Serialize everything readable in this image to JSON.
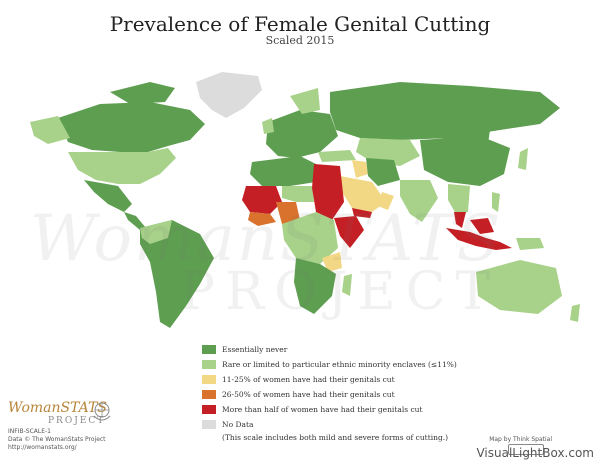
{
  "header": {
    "title": "Prevalence of Female Genital Cutting",
    "subtitle": "Scaled 2015"
  },
  "colors": {
    "essentially_never": "#5e9e50",
    "rare": "#a8d28a",
    "low": "#f2d884",
    "mid": "#d8722c",
    "high": "#c41f25",
    "no_data": "#dcdcdc"
  },
  "legend": {
    "items": [
      {
        "label": "Essentially never",
        "color": "#5e9e50"
      },
      {
        "label": "Rare or limited to particular ethnic minority enclaves (≤11%)",
        "color": "#a8d28a"
      },
      {
        "label": "11-25% of women have had their genitals cut",
        "color": "#f2d884"
      },
      {
        "label": "26-50% of women have had their genitals cut",
        "color": "#d8722c"
      },
      {
        "label": "More than half of women have had their genitals cut",
        "color": "#c41f25"
      },
      {
        "label": "No Data",
        "color": "#dcdcdc"
      }
    ],
    "note": "(This scale includes both mild and severe forms of cutting.)"
  },
  "branding": {
    "logo_word": "WomanSTATS",
    "logo_project": "PROJECT",
    "info_lines": [
      "INFIB-SCALE-1",
      "Data © The WomanStats Project",
      "http://womanstats.org/"
    ],
    "credit": "Map by Think Spatial",
    "watermark_site": "VisualLightBox.com"
  }
}
